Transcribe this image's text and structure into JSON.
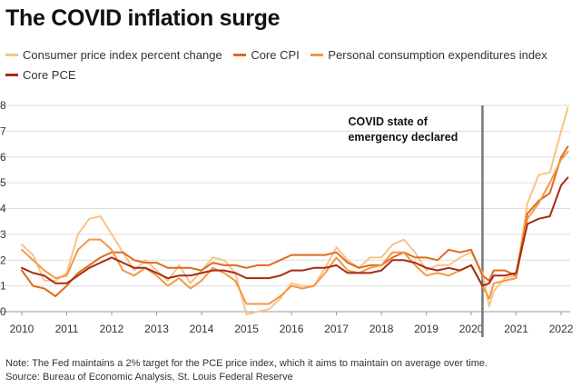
{
  "colors": {
    "cpi": "#f7c485",
    "core_cpi": "#e06a1d",
    "pce": "#f49845",
    "core_pce": "#a82a13",
    "annotation_line": "#777777",
    "grid": "#dddddd"
  },
  "chart_data": {
    "type": "line",
    "title": "The COVID inflation surge",
    "xlabel": "",
    "ylabel": "",
    "xlim": [
      2010,
      2022.2
    ],
    "ylim": [
      0,
      8
    ],
    "x_ticks": [
      "2010",
      "2011",
      "2012",
      "2013",
      "2014",
      "2015",
      "2016",
      "2017",
      "2018",
      "2019",
      "2020",
      "2021",
      "2022"
    ],
    "y_ticks": [
      "0",
      "1",
      "2",
      "3",
      "4",
      "5",
      "6",
      "7",
      "8"
    ],
    "legend_placement": "top",
    "annotation": {
      "x": 2020.25,
      "text_line1": "COVID state of",
      "text_line2": "emergency declared"
    },
    "series": [
      {
        "key": "cpi",
        "name": "Consumer price index percent change",
        "x": [
          2010.0,
          2010.25,
          2010.5,
          2010.75,
          2011.0,
          2011.25,
          2011.5,
          2011.75,
          2012.0,
          2012.25,
          2012.5,
          2012.75,
          2013.0,
          2013.25,
          2013.5,
          2013.75,
          2014.0,
          2014.25,
          2014.5,
          2014.75,
          2015.0,
          2015.25,
          2015.5,
          2015.75,
          2016.0,
          2016.25,
          2016.5,
          2016.75,
          2017.0,
          2017.25,
          2017.5,
          2017.75,
          2018.0,
          2018.25,
          2018.5,
          2018.75,
          2019.0,
          2019.25,
          2019.5,
          2019.75,
          2020.0,
          2020.25,
          2020.4,
          2020.5,
          2020.75,
          2021.0,
          2021.25,
          2021.5,
          2021.75,
          2022.0,
          2022.15
        ],
        "values": [
          2.6,
          2.2,
          1.2,
          1.2,
          1.5,
          3.0,
          3.6,
          3.7,
          3.0,
          2.3,
          1.6,
          2.0,
          1.6,
          1.2,
          1.8,
          1.1,
          1.6,
          2.1,
          2.0,
          1.5,
          -0.1,
          0.0,
          0.1,
          0.5,
          1.1,
          1.0,
          1.0,
          1.7,
          2.5,
          2.0,
          1.7,
          2.1,
          2.1,
          2.6,
          2.8,
          2.3,
          1.6,
          1.8,
          1.8,
          2.1,
          2.3,
          1.5,
          0.2,
          0.8,
          1.3,
          1.4,
          4.2,
          5.3,
          5.4,
          7.0,
          7.9
        ]
      },
      {
        "key": "core_cpi",
        "name": "Core CPI",
        "x": [
          2010.0,
          2010.25,
          2010.5,
          2010.75,
          2011.0,
          2011.25,
          2011.5,
          2011.75,
          2012.0,
          2012.25,
          2012.5,
          2012.75,
          2013.0,
          2013.25,
          2013.5,
          2013.75,
          2014.0,
          2014.25,
          2014.5,
          2014.75,
          2015.0,
          2015.25,
          2015.5,
          2015.75,
          2016.0,
          2016.25,
          2016.5,
          2016.75,
          2017.0,
          2017.25,
          2017.5,
          2017.75,
          2018.0,
          2018.25,
          2018.5,
          2018.75,
          2019.0,
          2019.25,
          2019.5,
          2019.75,
          2020.0,
          2020.25,
          2020.4,
          2020.5,
          2020.75,
          2021.0,
          2021.25,
          2021.5,
          2021.75,
          2022.0,
          2022.15
        ],
        "values": [
          1.6,
          1.0,
          0.9,
          0.6,
          1.0,
          1.5,
          1.8,
          2.1,
          2.3,
          2.3,
          2.0,
          1.9,
          1.9,
          1.7,
          1.7,
          1.7,
          1.6,
          1.9,
          1.8,
          1.8,
          1.7,
          1.8,
          1.8,
          2.0,
          2.2,
          2.2,
          2.2,
          2.2,
          2.3,
          1.9,
          1.7,
          1.8,
          1.8,
          2.1,
          2.3,
          2.1,
          2.1,
          2.0,
          2.4,
          2.3,
          2.4,
          1.4,
          1.2,
          1.6,
          1.6,
          1.4,
          3.8,
          4.3,
          4.6,
          6.0,
          6.4
        ]
      },
      {
        "key": "pce",
        "name": "Personal consumption expenditures index",
        "x": [
          2010.0,
          2010.25,
          2010.5,
          2010.75,
          2011.0,
          2011.25,
          2011.5,
          2011.75,
          2012.0,
          2012.25,
          2012.5,
          2012.75,
          2013.0,
          2013.25,
          2013.5,
          2013.75,
          2014.0,
          2014.25,
          2014.5,
          2014.75,
          2015.0,
          2015.25,
          2015.5,
          2015.75,
          2016.0,
          2016.25,
          2016.5,
          2016.75,
          2017.0,
          2017.25,
          2017.5,
          2017.75,
          2018.0,
          2018.25,
          2018.5,
          2018.75,
          2019.0,
          2019.25,
          2019.5,
          2019.75,
          2020.0,
          2020.25,
          2020.4,
          2020.5,
          2020.75,
          2021.0,
          2021.25,
          2021.5,
          2021.75,
          2022.0,
          2022.15
        ],
        "values": [
          2.4,
          2.0,
          1.6,
          1.3,
          1.4,
          2.4,
          2.8,
          2.8,
          2.4,
          1.6,
          1.4,
          1.7,
          1.4,
          1.0,
          1.3,
          0.9,
          1.2,
          1.7,
          1.5,
          1.2,
          0.3,
          0.3,
          0.3,
          0.6,
          1.0,
          0.9,
          1.0,
          1.5,
          2.1,
          1.6,
          1.5,
          1.7,
          1.8,
          2.3,
          2.3,
          1.8,
          1.4,
          1.5,
          1.4,
          1.6,
          1.8,
          1.0,
          0.5,
          1.1,
          1.2,
          1.3,
          3.6,
          4.2,
          5.0,
          5.9,
          6.2
        ]
      },
      {
        "key": "core_pce",
        "name": "Core PCE",
        "x": [
          2010.0,
          2010.25,
          2010.5,
          2010.75,
          2011.0,
          2011.25,
          2011.5,
          2011.75,
          2012.0,
          2012.25,
          2012.5,
          2012.75,
          2013.0,
          2013.25,
          2013.5,
          2013.75,
          2014.0,
          2014.25,
          2014.5,
          2014.75,
          2015.0,
          2015.25,
          2015.5,
          2015.75,
          2016.0,
          2016.25,
          2016.5,
          2016.75,
          2017.0,
          2017.25,
          2017.5,
          2017.75,
          2018.0,
          2018.25,
          2018.5,
          2018.75,
          2019.0,
          2019.25,
          2019.5,
          2019.75,
          2020.0,
          2020.25,
          2020.4,
          2020.5,
          2020.75,
          2021.0,
          2021.25,
          2021.5,
          2021.75,
          2022.0,
          2022.15
        ],
        "values": [
          1.7,
          1.5,
          1.4,
          1.1,
          1.1,
          1.4,
          1.7,
          1.9,
          2.1,
          1.9,
          1.7,
          1.7,
          1.5,
          1.3,
          1.4,
          1.4,
          1.5,
          1.6,
          1.6,
          1.5,
          1.3,
          1.3,
          1.3,
          1.4,
          1.6,
          1.6,
          1.7,
          1.7,
          1.8,
          1.5,
          1.5,
          1.5,
          1.6,
          2.0,
          2.0,
          1.9,
          1.7,
          1.6,
          1.7,
          1.6,
          1.8,
          1.0,
          1.1,
          1.4,
          1.4,
          1.5,
          3.4,
          3.6,
          3.7,
          4.9,
          5.2
        ]
      }
    ]
  },
  "footer": {
    "note": "Note: The Fed maintains a 2% target for the PCE price index, which it aims to maintain on average over time.",
    "source": "Source: Bureau of Economic Analysis, St. Louis Federal Reserve"
  }
}
